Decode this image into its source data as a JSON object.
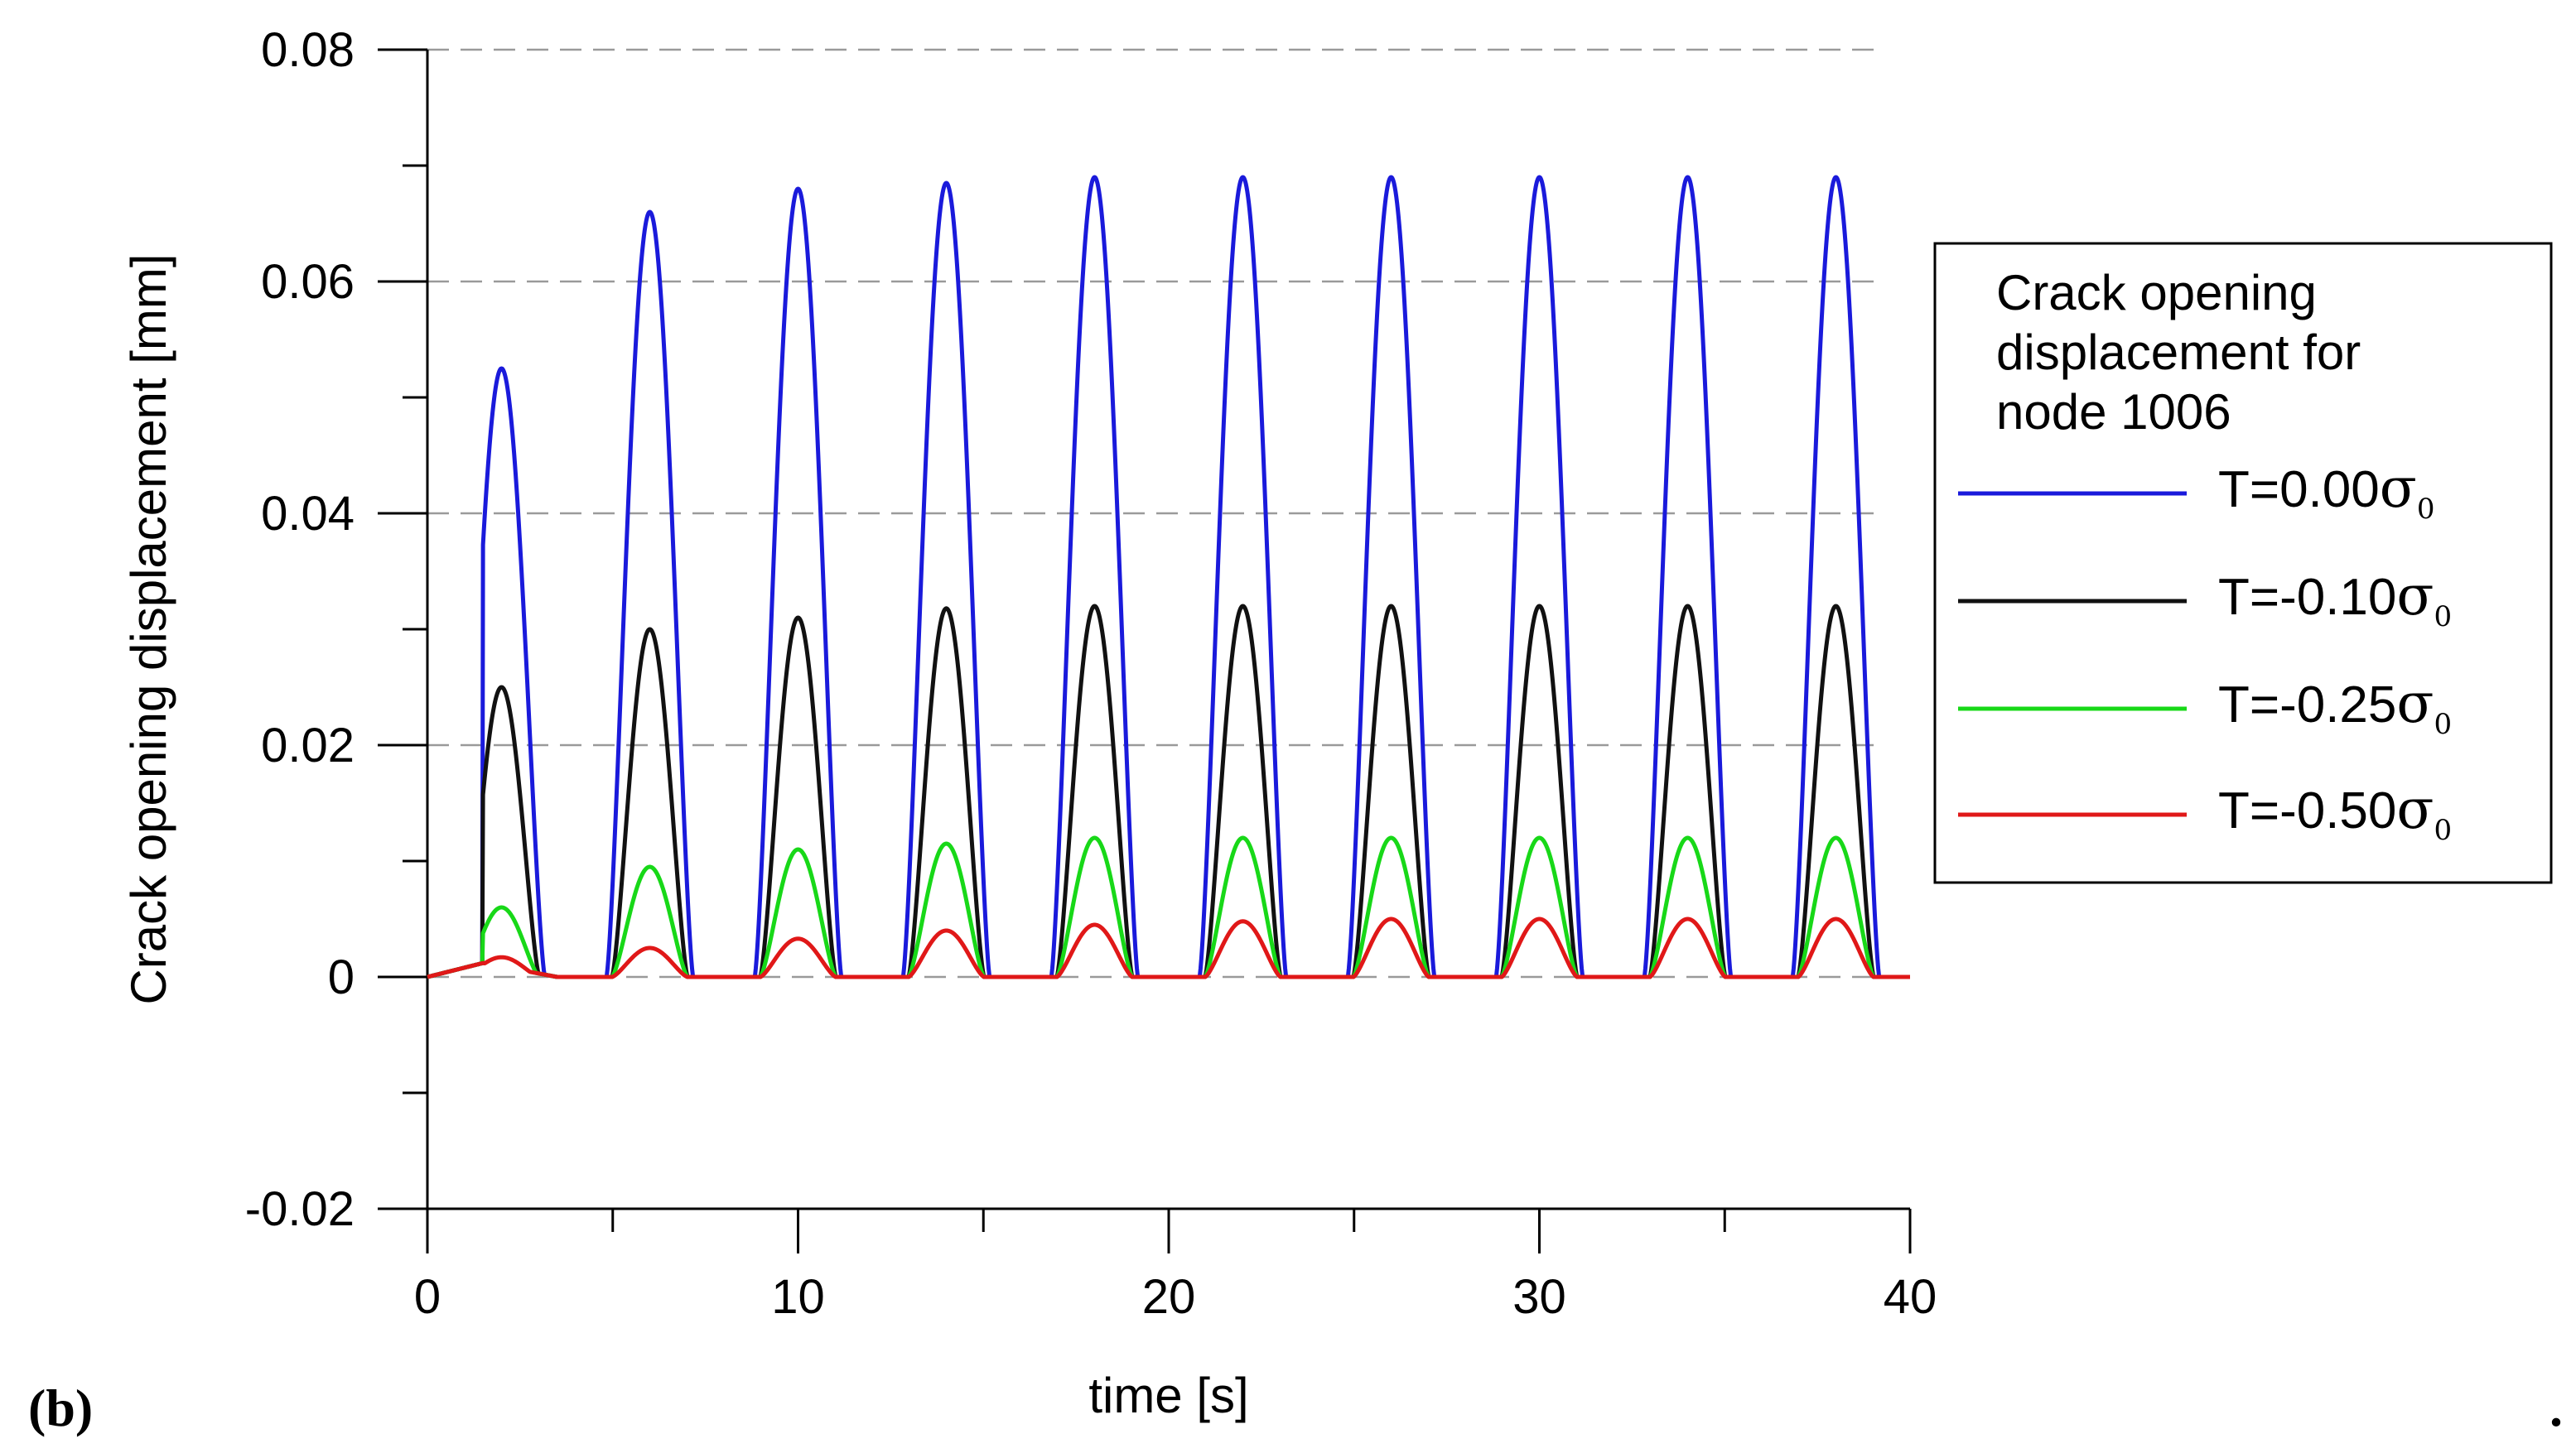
{
  "panel_label": "(b)",
  "trailing_mark": ".",
  "chart_data": {
    "type": "line",
    "title": "",
    "xlabel": "time [s]",
    "ylabel": "Crack opening displacement [mm]",
    "xlim": [
      0,
      40
    ],
    "ylim": [
      -0.02,
      0.08
    ],
    "x_ticks": [
      0,
      10,
      20,
      30,
      40
    ],
    "x_tick_labels": [
      "0",
      "10",
      "20",
      "30",
      "40"
    ],
    "y_ticks": [
      -0.02,
      0,
      0.02,
      0.04,
      0.06,
      0.08
    ],
    "y_tick_labels": [
      "-0.02",
      "0",
      "0.02",
      "0.04",
      "0.06",
      "0.08"
    ],
    "grid": "horizontal dashed",
    "legend": {
      "title_lines": [
        "Crack opening",
        "displacement for",
        "node 1006"
      ],
      "position": "right"
    },
    "loading_period_s": 4,
    "peak_times_s": [
      2,
      6,
      10,
      14,
      18,
      22,
      26,
      30,
      34,
      38
    ],
    "series": [
      {
        "name": "T=0.00σ0",
        "label_main": "T=0.00",
        "label_sym": "σ",
        "label_sub": "0",
        "color": "#1a1adb",
        "peaks": [
          0.0525,
          0.066,
          0.068,
          0.0685,
          0.069,
          0.069,
          0.069,
          0.069,
          0.069,
          0.069
        ]
      },
      {
        "name": "T=-0.10σ0",
        "label_main": "T=-0.10",
        "label_sym": "σ",
        "label_sub": "0",
        "color": "#111111",
        "peaks": [
          0.025,
          0.03,
          0.031,
          0.0318,
          0.032,
          0.032,
          0.032,
          0.032,
          0.032,
          0.032
        ]
      },
      {
        "name": "T=-0.25σ0",
        "label_main": "T=-0.25",
        "label_sym": "σ",
        "label_sub": "0",
        "color": "#18d818",
        "peaks": [
          0.006,
          0.0095,
          0.011,
          0.0115,
          0.012,
          0.012,
          0.012,
          0.012,
          0.012,
          0.012
        ]
      },
      {
        "name": "T=-0.50σ0",
        "label_main": "T=-0.50",
        "label_sym": "σ",
        "label_sub": "0",
        "color": "#e01818",
        "peaks": [
          0.0017,
          0.0025,
          0.0033,
          0.004,
          0.0045,
          0.0048,
          0.005,
          0.005,
          0.005,
          0.005
        ]
      }
    ]
  }
}
